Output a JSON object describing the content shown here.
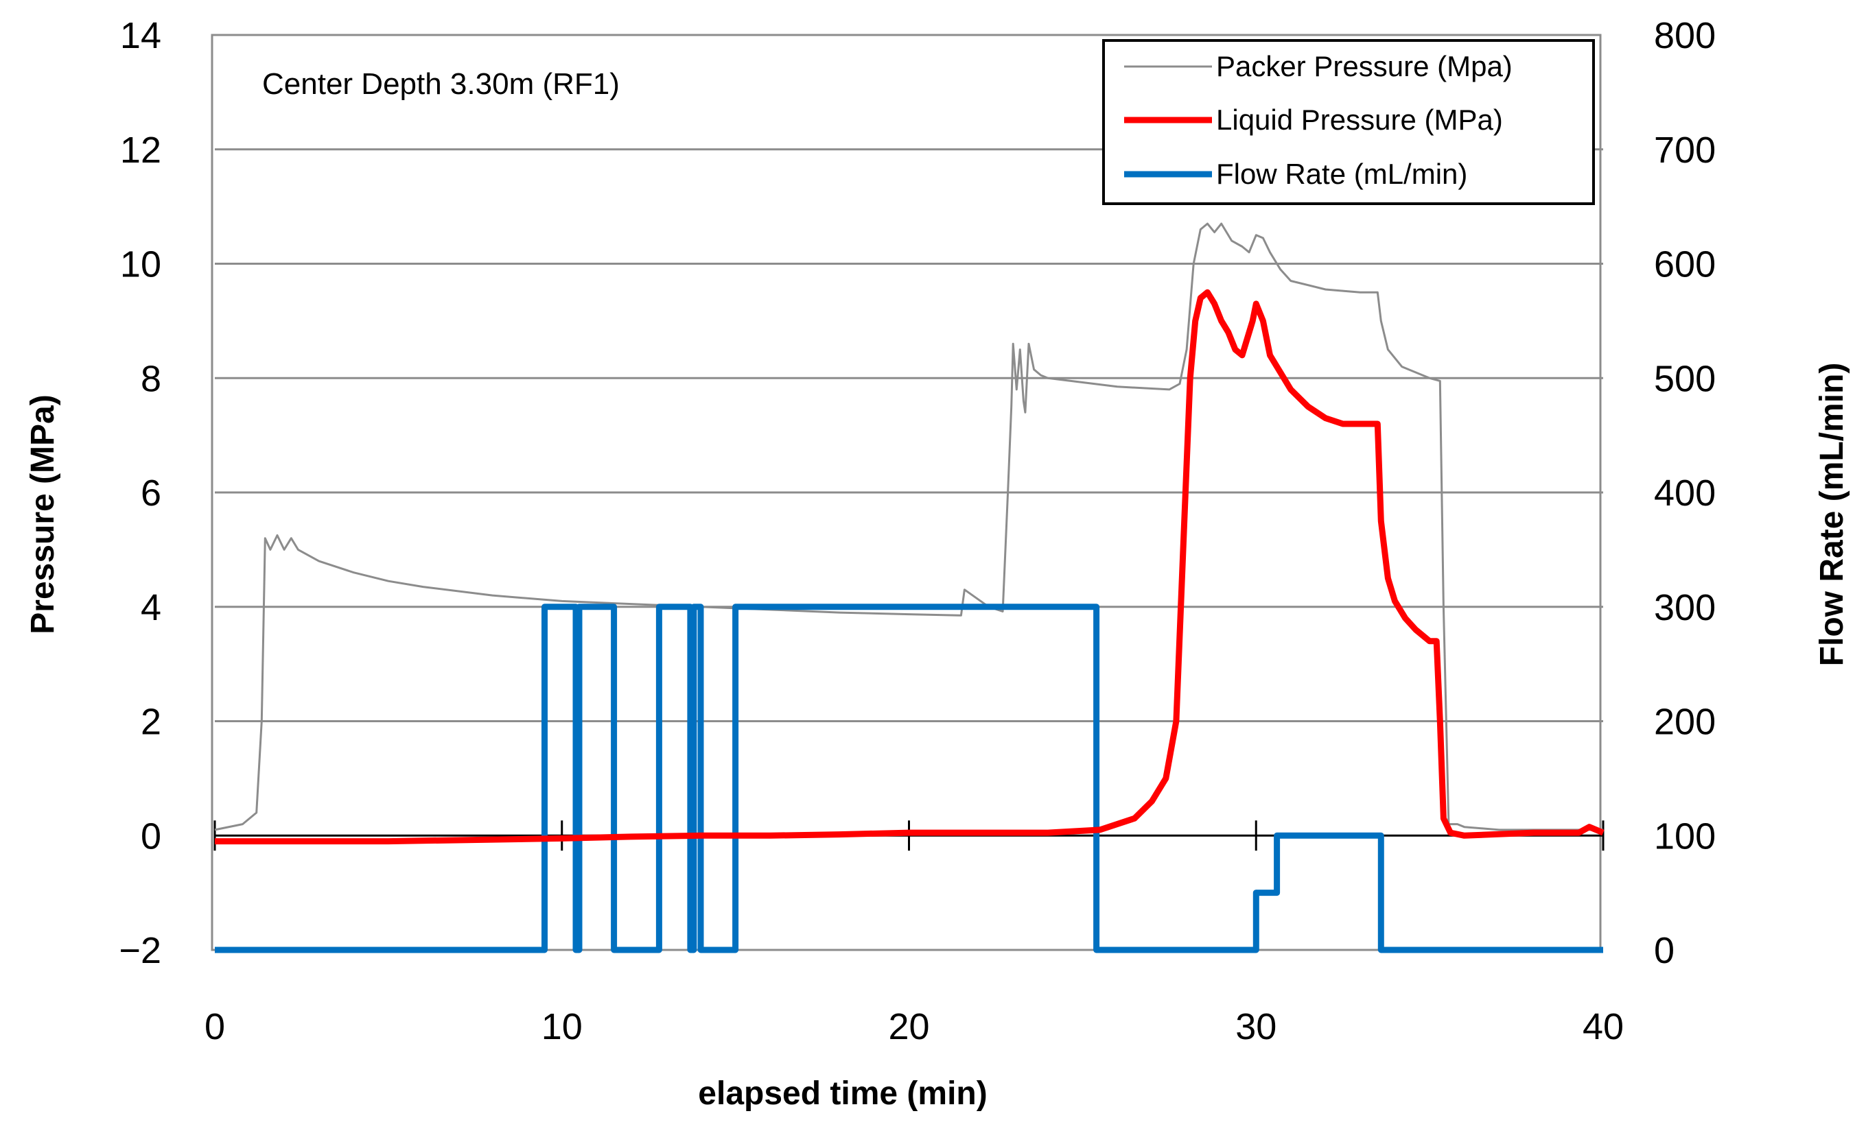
{
  "chart_data": {
    "type": "line",
    "annotation": "Center Depth 3.30m (RF1)",
    "xlabel": "elapsed time (min)",
    "ylabel": "Pressure (MPa)",
    "y2label": "Flow Rate (mL/min)",
    "xlim": [
      0,
      40
    ],
    "ylim": [
      -2,
      14
    ],
    "y2lim": [
      0,
      800
    ],
    "x_ticks": [
      0,
      10,
      20,
      30,
      40
    ],
    "y_ticks": [
      -2,
      0,
      2,
      4,
      6,
      8,
      10,
      12,
      14
    ],
    "y2_ticks": [
      0,
      100,
      200,
      300,
      400,
      500,
      600,
      700,
      800
    ],
    "x_tick_labels": [
      "0",
      "10",
      "20",
      "30",
      "40"
    ],
    "y_tick_labels": [
      "−2",
      "0",
      "2",
      "4",
      "6",
      "8",
      "10",
      "12",
      "14"
    ],
    "y2_tick_labels": [
      "0",
      "100",
      "200",
      "300",
      "400",
      "500",
      "600",
      "700",
      "800"
    ],
    "grid": "horizontal",
    "legend_position": "top-right",
    "series": [
      {
        "name": "Packer Pressure (Mpa)",
        "axis": "left",
        "color": "#8c8c8c",
        "style": "thin",
        "x": [
          0,
          0.8,
          1.2,
          1.35,
          1.45,
          1.6,
          1.8,
          2.0,
          2.2,
          2.4,
          3,
          4,
          5,
          6,
          8,
          10,
          12,
          14,
          16,
          18,
          20,
          21.5,
          21.6,
          22.3,
          22.7,
          22.85,
          22.95,
          23.0,
          23.1,
          23.2,
          23.3,
          23.35,
          23.45,
          23.6,
          23.8,
          24,
          26,
          27.5,
          27.8,
          28.0,
          28.2,
          28.4,
          28.6,
          28.8,
          29.0,
          29.3,
          29.6,
          29.8,
          30.0,
          30.2,
          30.4,
          30.7,
          31.0,
          32.0,
          33.0,
          33.5,
          33.6,
          33.8,
          34.2,
          35.0,
          35.3,
          35.4,
          35.55,
          35.8,
          36,
          37,
          38,
          39,
          40
        ],
        "y": [
          0.1,
          0.2,
          0.4,
          2.0,
          5.2,
          5.0,
          5.25,
          5.0,
          5.2,
          5.0,
          4.8,
          4.6,
          4.45,
          4.35,
          4.2,
          4.1,
          4.05,
          4.0,
          3.95,
          3.9,
          3.87,
          3.85,
          4.3,
          4.0,
          3.92,
          6.0,
          7.5,
          8.6,
          7.8,
          8.5,
          7.6,
          7.4,
          8.6,
          8.15,
          8.05,
          8.0,
          7.85,
          7.8,
          7.9,
          8.5,
          10.0,
          10.6,
          10.7,
          10.55,
          10.7,
          10.4,
          10.3,
          10.2,
          10.5,
          10.45,
          10.2,
          9.9,
          9.7,
          9.55,
          9.5,
          9.5,
          9.0,
          8.5,
          8.2,
          8.0,
          7.95,
          4.0,
          0.2,
          0.2,
          0.15,
          0.1,
          0.1,
          0.1,
          0.1
        ]
      },
      {
        "name": "Liquid Pressure (MPa)",
        "axis": "left",
        "color": "#ff0000",
        "style": "thick",
        "x": [
          0,
          5,
          10,
          12,
          14,
          16,
          18,
          20,
          24,
          25.5,
          26.5,
          27.0,
          27.4,
          27.7,
          27.9,
          28.1,
          28.25,
          28.4,
          28.6,
          28.8,
          29.0,
          29.2,
          29.4,
          29.6,
          29.9,
          30.0,
          30.2,
          30.4,
          30.6,
          31.0,
          31.5,
          32.0,
          32.5,
          33.0,
          33.5,
          33.6,
          33.8,
          34.0,
          34.3,
          34.6,
          35.0,
          35.2,
          35.3,
          35.4,
          35.6,
          36,
          38,
          39.3,
          39.6,
          40
        ],
        "y": [
          -0.1,
          -0.1,
          -0.05,
          -0.02,
          0.0,
          0.0,
          0.02,
          0.05,
          0.05,
          0.1,
          0.3,
          0.6,
          1.0,
          2.0,
          5.0,
          8.0,
          9.0,
          9.4,
          9.5,
          9.3,
          9.0,
          8.8,
          8.5,
          8.4,
          9.0,
          9.3,
          9.0,
          8.4,
          8.2,
          7.8,
          7.5,
          7.3,
          7.2,
          7.2,
          7.2,
          5.5,
          4.5,
          4.1,
          3.8,
          3.6,
          3.4,
          3.4,
          2.0,
          0.3,
          0.05,
          0.0,
          0.05,
          0.05,
          0.15,
          0.05
        ]
      },
      {
        "name": "Flow Rate (mL/min)",
        "axis": "right",
        "color": "#0070c0",
        "style": "thick",
        "x": [
          0,
          9.5,
          9.5,
          10.4,
          10.4,
          10.5,
          10.5,
          11.5,
          11.5,
          12.8,
          12.8,
          13.7,
          13.7,
          13.8,
          13.8,
          14.0,
          14.0,
          15.0,
          15.0,
          25.4,
          25.4,
          30.0,
          30.0,
          30.6,
          30.6,
          33.6,
          33.6,
          40
        ],
        "y": [
          0,
          0,
          300,
          300,
          0,
          0,
          300,
          300,
          0,
          0,
          300,
          300,
          0,
          0,
          300,
          300,
          0,
          0,
          300,
          300,
          0,
          0,
          50,
          50,
          100,
          100,
          0,
          0
        ]
      }
    ]
  }
}
